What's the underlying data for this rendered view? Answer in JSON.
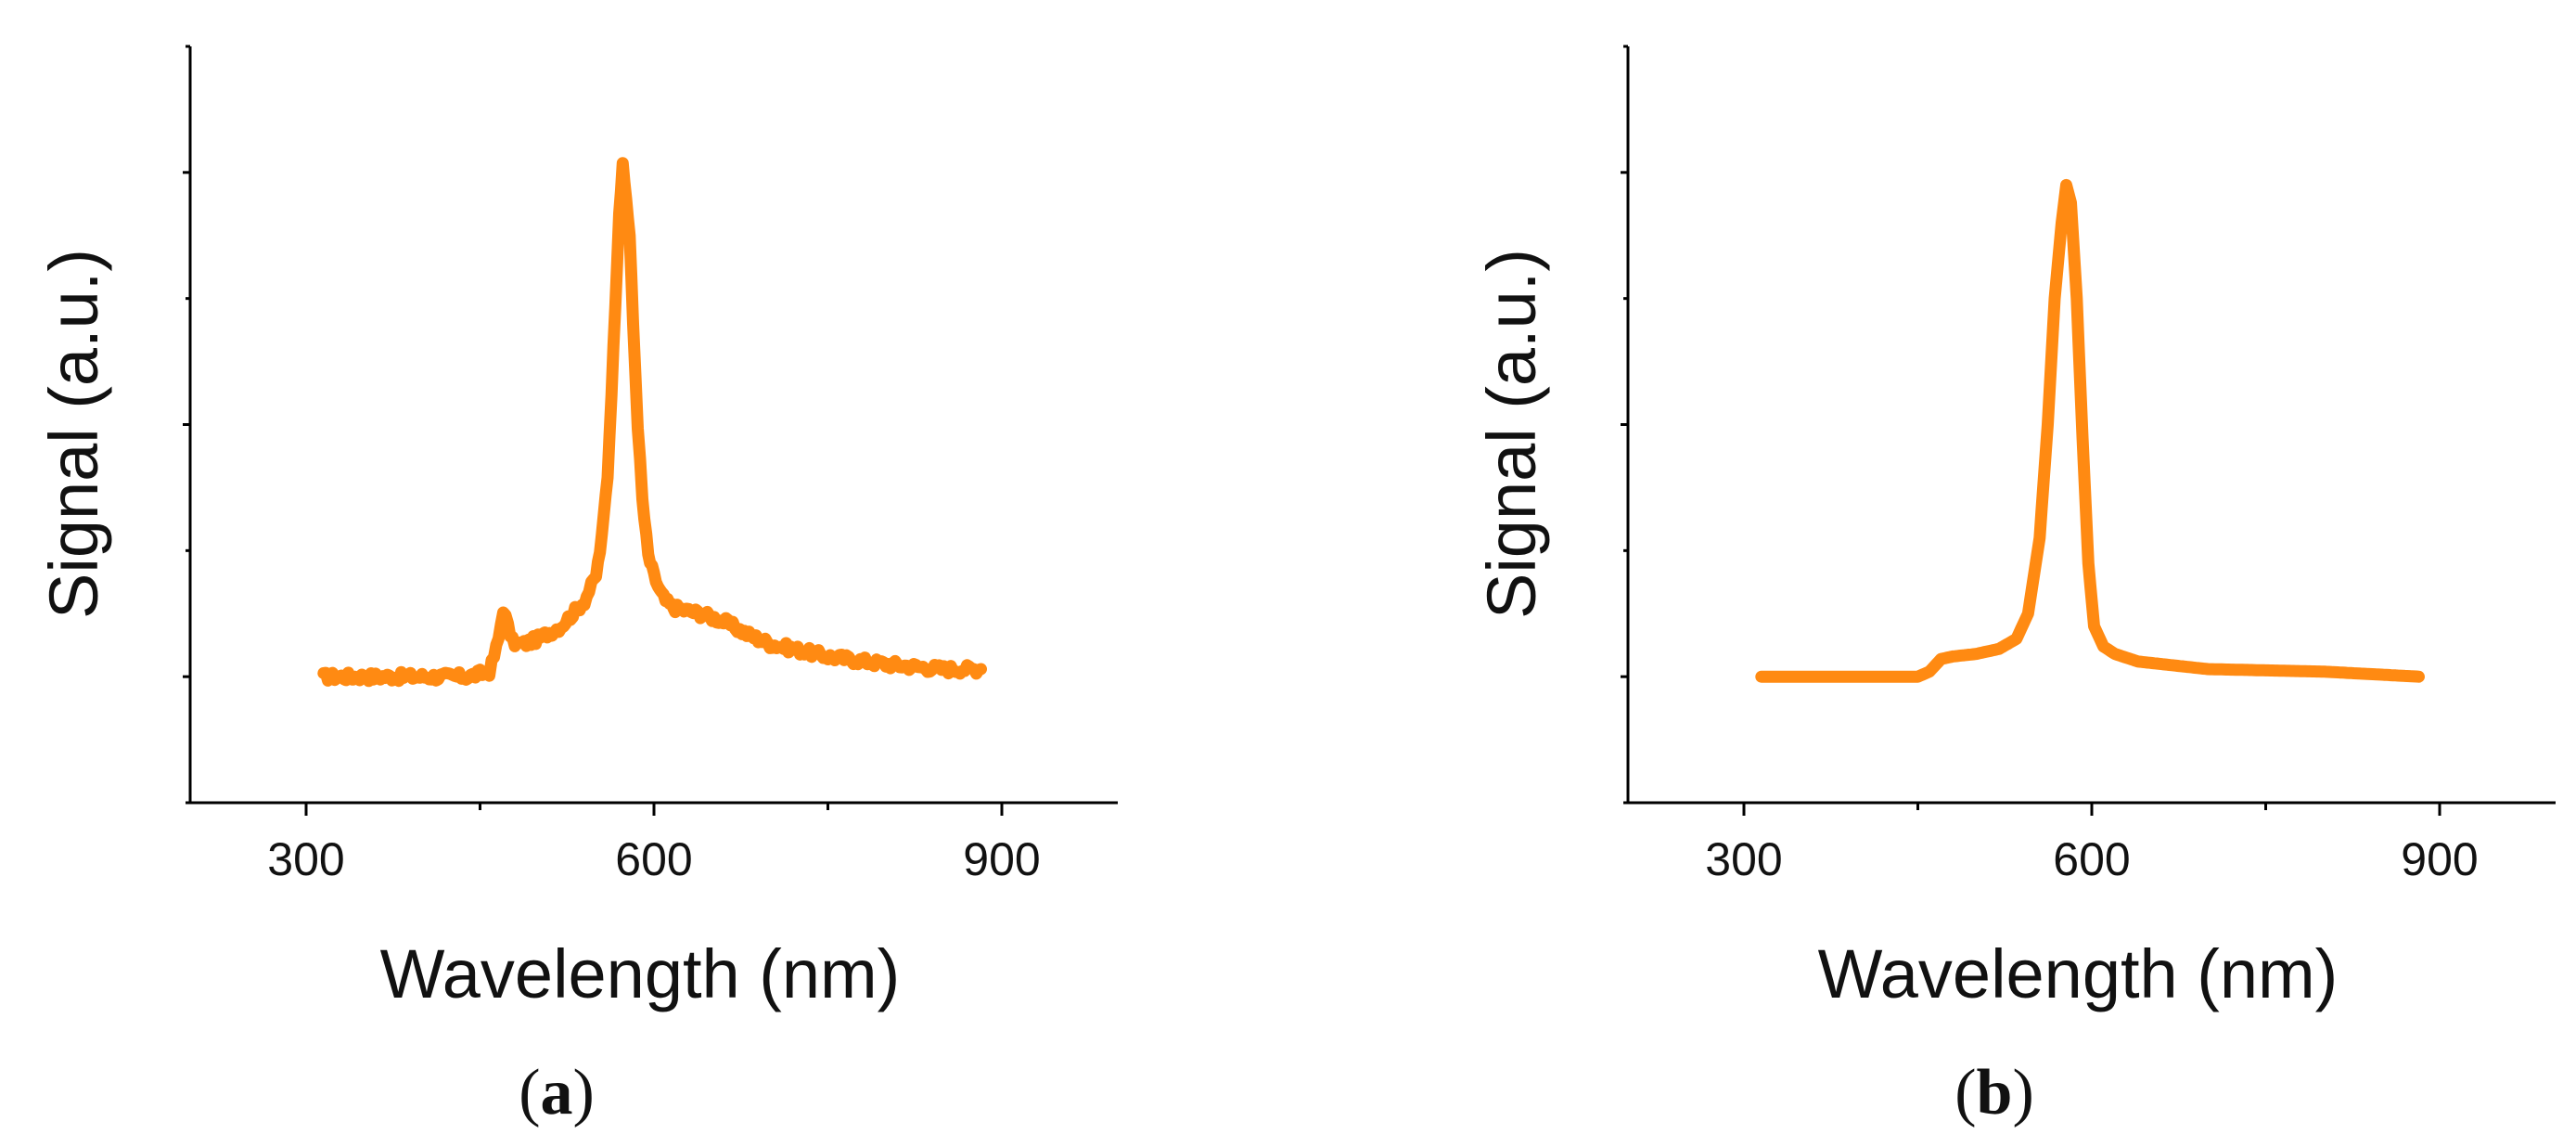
{
  "chart_data": [
    {
      "type": "line",
      "panel_label": "a",
      "xlabel": "Wavelength (nm)",
      "ylabel": "Signal (a.u.)",
      "xlim": [
        200,
        1000
      ],
      "ylim": [
        -0.5,
        2.5
      ],
      "xticks": [
        300,
        600,
        900
      ],
      "yticks_unlabeled": [
        -0.5,
        0,
        0.5,
        1,
        1.5,
        2,
        2.5
      ],
      "grid": false,
      "noise": 0.018,
      "series": [
        {
          "color": "#FF8A12",
          "x": [
            315,
            350,
            400,
            440,
            458,
            462,
            466,
            470,
            474,
            478,
            482,
            488,
            500,
            520,
            540,
            550,
            555,
            560,
            565,
            570,
            573,
            576,
            579,
            582,
            586,
            590,
            595,
            600,
            605,
            610,
            615,
            620,
            640,
            660,
            680,
            700,
            750,
            800,
            850,
            882
          ],
          "y": [
            0.0,
            0.0,
            0.0,
            0.0,
            0.02,
            0.08,
            0.15,
            0.27,
            0.2,
            0.14,
            0.13,
            0.13,
            0.15,
            0.2,
            0.3,
            0.4,
            0.55,
            0.8,
            1.3,
            1.85,
            2.02,
            1.9,
            1.75,
            1.4,
            1.0,
            0.7,
            0.48,
            0.4,
            0.34,
            0.3,
            0.28,
            0.27,
            0.25,
            0.22,
            0.17,
            0.13,
            0.08,
            0.05,
            0.03,
            0.03
          ]
        }
      ]
    },
    {
      "type": "line",
      "panel_label": "b",
      "xlabel": "Wavelength (nm)",
      "ylabel": "Signal (a.u.)",
      "xlim": [
        200,
        1000
      ],
      "ylim": [
        -0.5,
        2.5
      ],
      "xticks": [
        300,
        600,
        900
      ],
      "yticks_unlabeled": [
        -0.5,
        0,
        0.5,
        1,
        1.5,
        2,
        2.5
      ],
      "grid": false,
      "noise": 0.0,
      "series": [
        {
          "color": "#FF8A12",
          "x": [
            315,
            400,
            450,
            460,
            470,
            480,
            500,
            520,
            535,
            545,
            555,
            562,
            568,
            574,
            578,
            582,
            587,
            592,
            597,
            602,
            610,
            620,
            640,
            700,
            800,
            882
          ],
          "y": [
            0.0,
            0.0,
            0.0,
            0.02,
            0.07,
            0.08,
            0.09,
            0.11,
            0.15,
            0.25,
            0.55,
            1.0,
            1.5,
            1.8,
            1.95,
            1.88,
            1.5,
            0.95,
            0.45,
            0.2,
            0.12,
            0.09,
            0.06,
            0.03,
            0.02,
            0.0
          ]
        }
      ]
    }
  ]
}
